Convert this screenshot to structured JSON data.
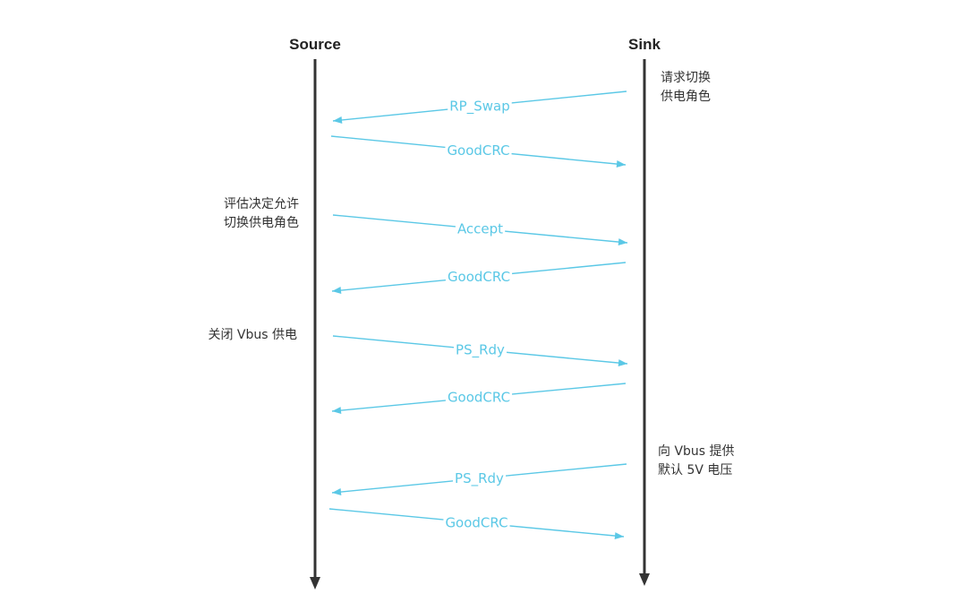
{
  "participants": {
    "source": "Source",
    "sink": "Sink"
  },
  "colors": {
    "message": "#5bc8e6",
    "lifeline": "#333333",
    "text": "#333333"
  },
  "messages": [
    {
      "label": "RP_Swap",
      "from": "sink",
      "to": "source"
    },
    {
      "label": "GoodCRC",
      "from": "source",
      "to": "sink"
    },
    {
      "label": "Accept",
      "from": "source",
      "to": "sink"
    },
    {
      "label": "GoodCRC",
      "from": "sink",
      "to": "source"
    },
    {
      "label": "PS_Rdy",
      "from": "source",
      "to": "sink"
    },
    {
      "label": "GoodCRC",
      "from": "sink",
      "to": "source"
    },
    {
      "label": "PS_Rdy",
      "from": "sink",
      "to": "source"
    },
    {
      "label": "GoodCRC",
      "from": "source",
      "to": "sink"
    }
  ],
  "notes": {
    "sink_request": "请求切换\n供电角色",
    "source_evaluate": "评估决定允许\n切换供电角色",
    "source_vbus_off": "关闭 Vbus 供电",
    "sink_vbus_on": "向 Vbus 提供\n默认 5V 电压"
  }
}
